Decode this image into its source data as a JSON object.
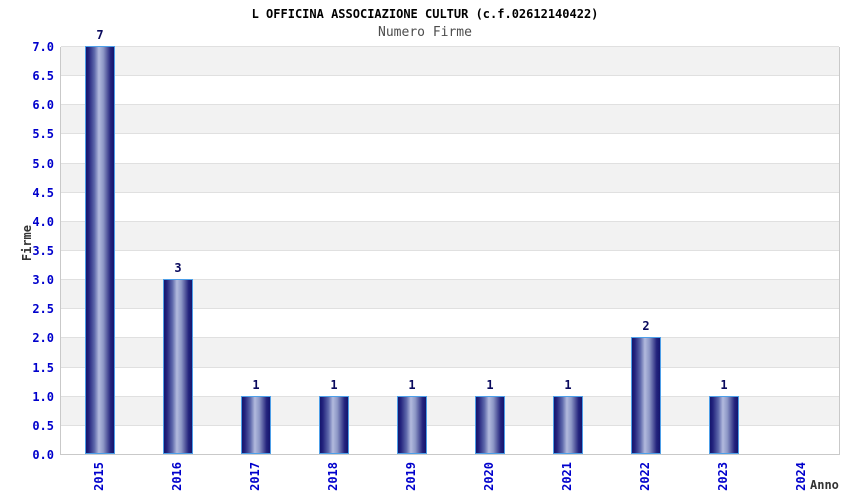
{
  "chart_data": {
    "type": "bar",
    "title": "L OFFICINA ASSOCIAZIONE CULTUR (c.f.02612140422)",
    "subtitle": "Numero Firme",
    "categories": [
      "2015",
      "2016",
      "2017",
      "2018",
      "2019",
      "2020",
      "2021",
      "2022",
      "2023",
      "2024"
    ],
    "values": [
      7,
      3,
      1,
      1,
      1,
      1,
      1,
      2,
      1,
      0
    ],
    "xlabel": "Anno",
    "ylabel": "Firme",
    "ylim": [
      0,
      7
    ],
    "ytick_step": 0.5,
    "ytick_format": "one-decimal",
    "grid": "alternating horizontal bands every 0.5 units with light gridlines",
    "legend_position": "none",
    "bar_value_labels_shown": true,
    "colors": {
      "axis_tick_text": "#0000cc",
      "bar_value_text": "#0a0a5e",
      "title_text": "#000000",
      "subtitle_text": "#4d4d4d",
      "axis_label_text": "#333333",
      "bar_dark": "#15156e",
      "bar_light": "#b2badd",
      "bar_border": "#4d9fe8",
      "band_gray": "#f2f2f2",
      "band_white": "#ffffff",
      "grid_line": "#e0e0e0",
      "plot_border": "#c9c9c9",
      "background": "#ffffff"
    }
  }
}
